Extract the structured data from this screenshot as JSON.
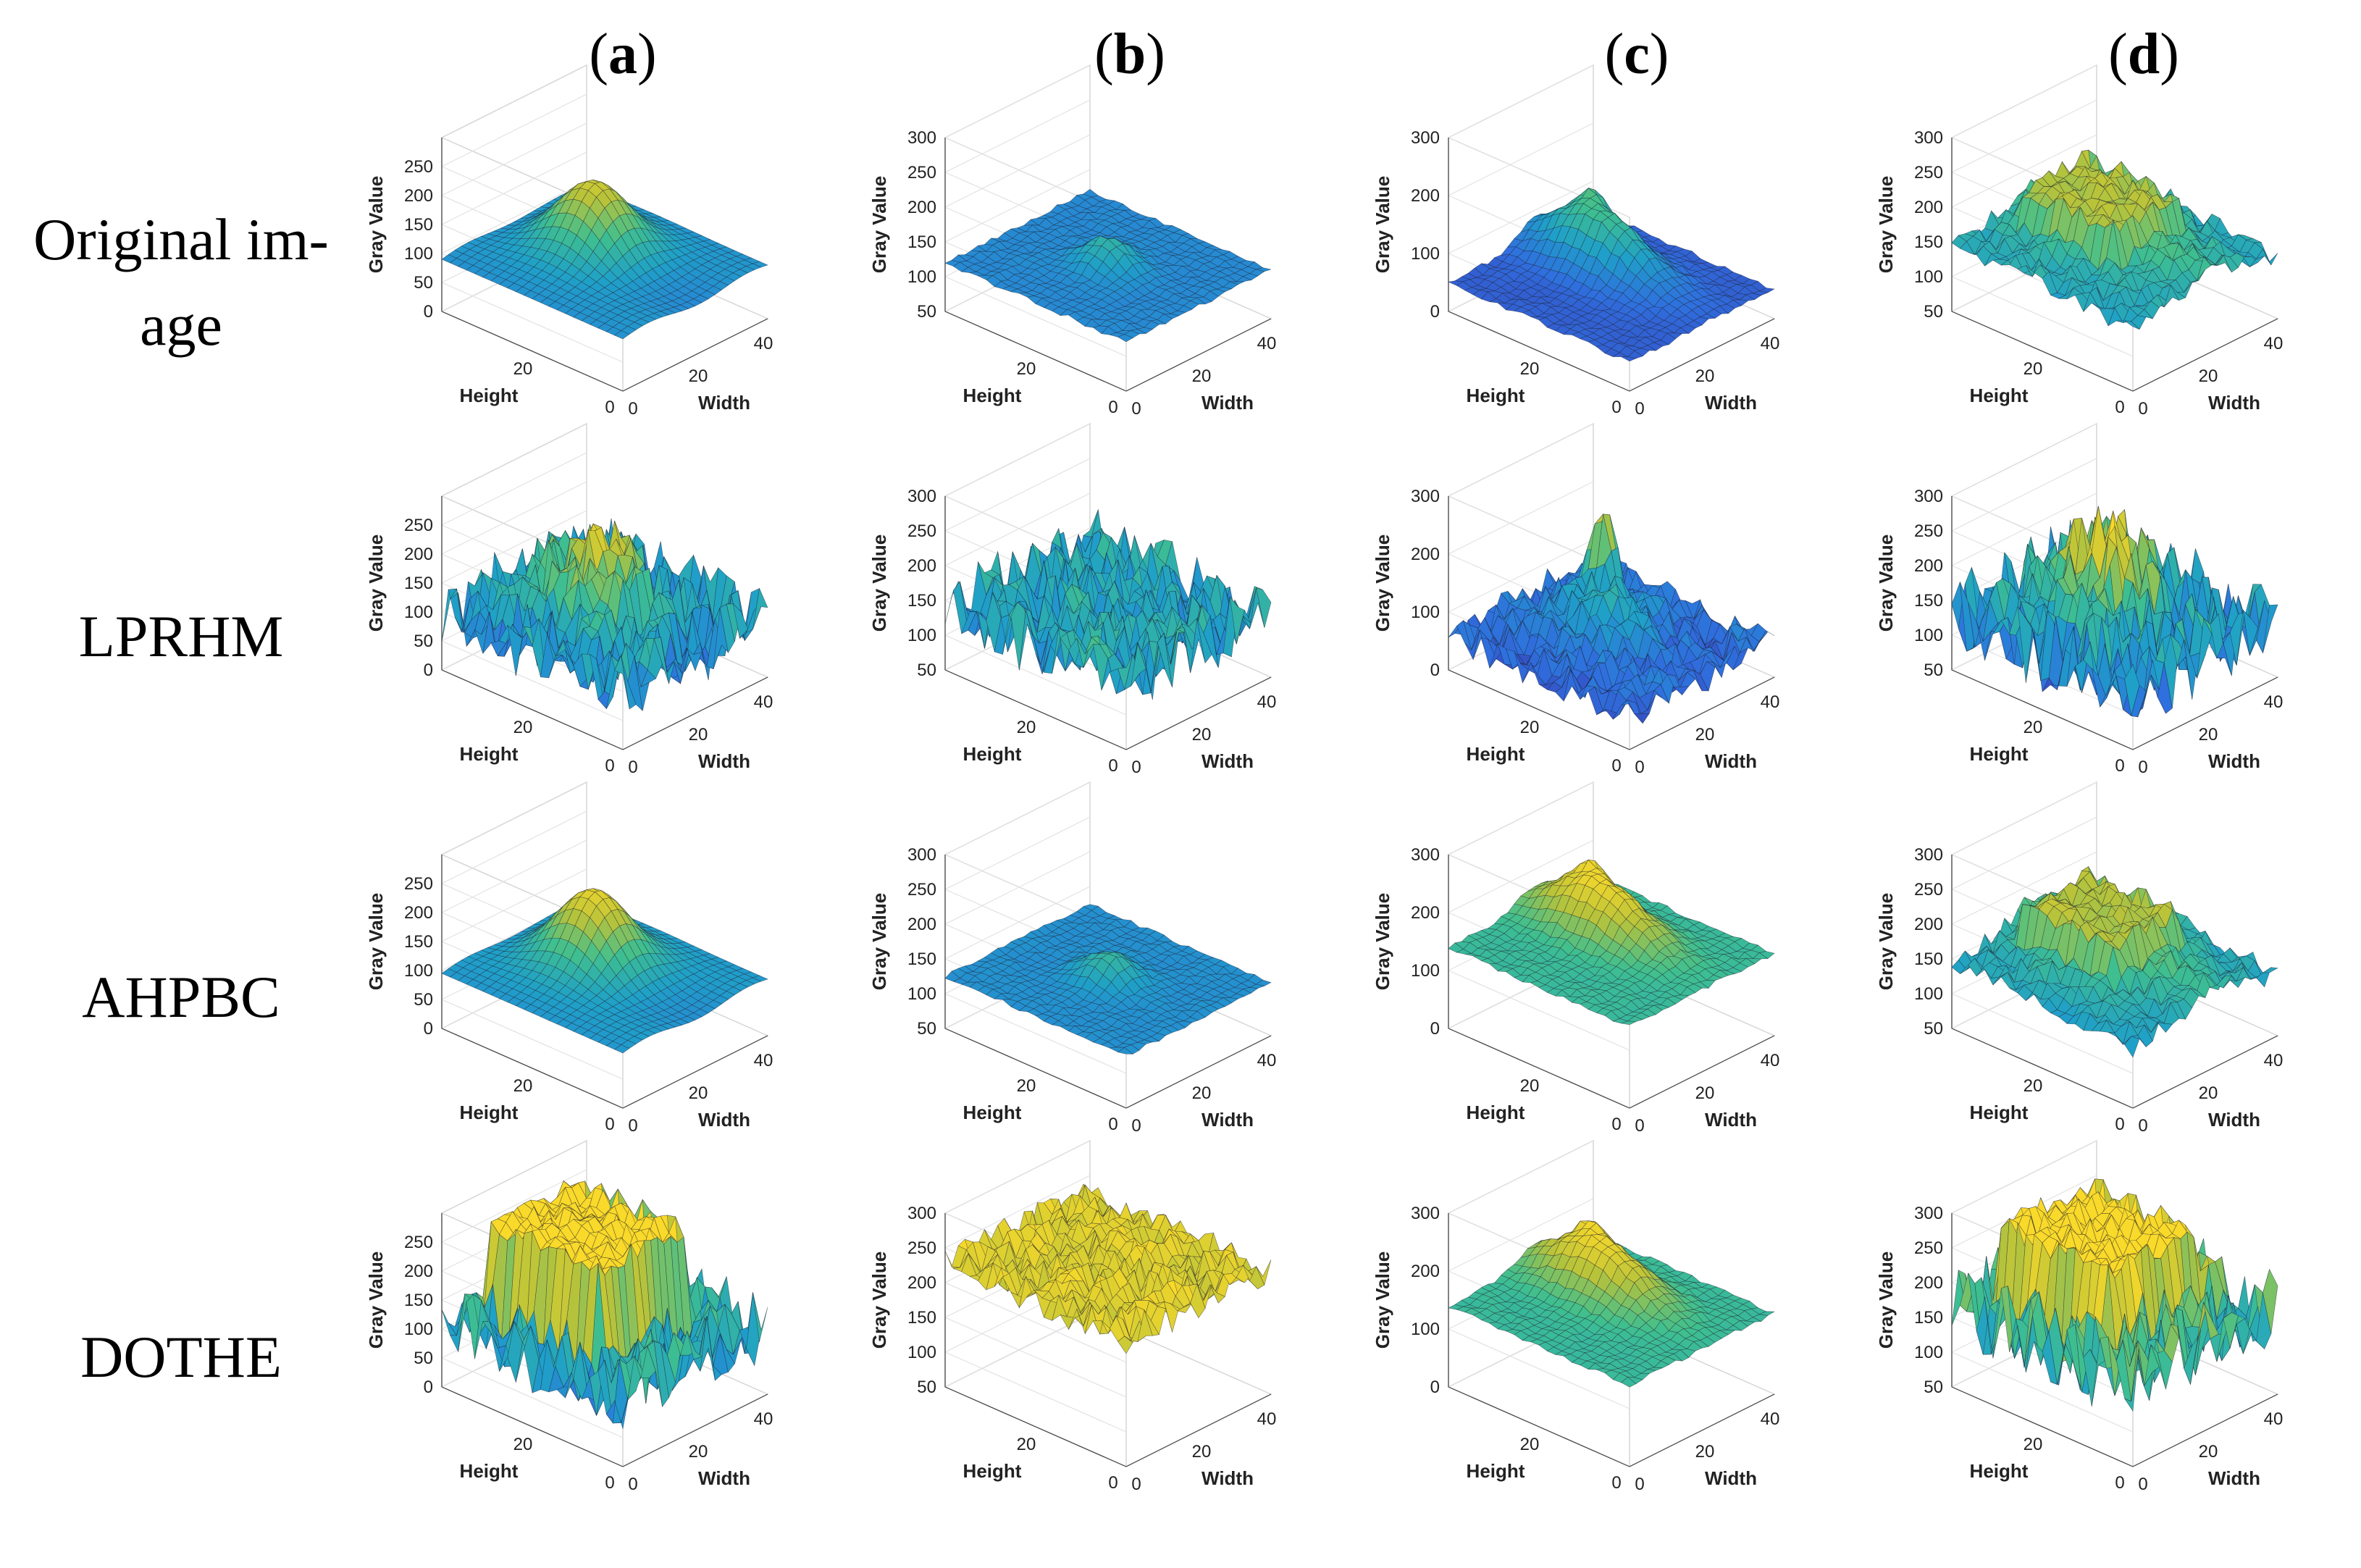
{
  "columns": [
    {
      "open": "(",
      "letter": "a",
      "close": ")"
    },
    {
      "open": "(",
      "letter": "b",
      "close": ")"
    },
    {
      "open": "(",
      "letter": "c",
      "close": ")"
    },
    {
      "open": "(",
      "letter": "d",
      "close": ")"
    }
  ],
  "rows": [
    {
      "line1": "Original im-",
      "line2": "age"
    },
    {
      "line1": "LPRHM",
      "line2": ""
    },
    {
      "line1": "AHPBC",
      "line2": ""
    },
    {
      "line1": "DOTHE",
      "line2": ""
    }
  ],
  "axis_titles": {
    "z": "Gray Value",
    "height": "Height",
    "width": "Width"
  },
  "chart_data": {
    "type": "surface-grid",
    "x_axis": {
      "label": "Width",
      "ticks": [
        "0",
        "20",
        "40"
      ]
    },
    "y_axis": {
      "label": "Height",
      "ticks": [
        "0",
        "20"
      ]
    },
    "z_axis": {
      "label": "Gray Value"
    },
    "colormap": [
      "#3a2da6",
      "#2f6fde",
      "#1fa0c8",
      "#3fbf8f",
      "#b8c33a",
      "#f9d92a"
    ],
    "panels": [
      {
        "row": "Original image",
        "col": "a",
        "zticks": [
          "0",
          "50",
          "100",
          "150",
          "200",
          "250"
        ],
        "zlim": [
          0,
          300
        ],
        "pattern": "smooth-peak",
        "base": 90,
        "peak": 215
      },
      {
        "row": "Original image",
        "col": "b",
        "zticks": [
          "50",
          "100",
          "150",
          "200",
          "250",
          "300"
        ],
        "zlim": [
          50,
          300
        ],
        "pattern": "flat-bump",
        "base": 120,
        "peak": 160
      },
      {
        "row": "Original image",
        "col": "c",
        "zticks": [
          "0",
          "100",
          "200",
          "300"
        ],
        "zlim": [
          0,
          300
        ],
        "pattern": "ridge",
        "base": 50,
        "peak": 185
      },
      {
        "row": "Original image",
        "col": "d",
        "zticks": [
          "50",
          "100",
          "150",
          "200",
          "250",
          "300"
        ],
        "zlim": [
          50,
          300
        ],
        "pattern": "plateau-rough",
        "base": 120,
        "peak": 230
      },
      {
        "row": "LPRHM",
        "col": "a",
        "zticks": [
          "0",
          "50",
          "100",
          "150",
          "200",
          "250"
        ],
        "zlim": [
          0,
          300
        ],
        "pattern": "noisy-peak",
        "base": 100,
        "peak": 230
      },
      {
        "row": "LPRHM",
        "col": "b",
        "zticks": [
          "50",
          "100",
          "150",
          "200",
          "250",
          "300"
        ],
        "zlim": [
          50,
          300
        ],
        "pattern": "noisy-flat",
        "base": 140,
        "peak": 200
      },
      {
        "row": "LPRHM",
        "col": "c",
        "zticks": [
          "0",
          "100",
          "200",
          "300"
        ],
        "zlim": [
          0,
          300
        ],
        "pattern": "noisy-spike",
        "base": 60,
        "peak": 260
      },
      {
        "row": "LPRHM",
        "col": "d",
        "zticks": [
          "50",
          "100",
          "150",
          "200",
          "250",
          "300"
        ],
        "zlim": [
          50,
          300
        ],
        "pattern": "noisy-peak",
        "base": 130,
        "peak": 260
      },
      {
        "row": "AHPBC",
        "col": "a",
        "zticks": [
          "0",
          "50",
          "100",
          "150",
          "200",
          "250"
        ],
        "zlim": [
          0,
          300
        ],
        "pattern": "smooth-peak",
        "base": 95,
        "peak": 230
      },
      {
        "row": "AHPBC",
        "col": "b",
        "zticks": [
          "50",
          "100",
          "150",
          "200",
          "250",
          "300"
        ],
        "zlim": [
          50,
          300
        ],
        "pattern": "flat-bump",
        "base": 125,
        "peak": 165
      },
      {
        "row": "AHPBC",
        "col": "c",
        "zticks": [
          "0",
          "100",
          "200",
          "300"
        ],
        "zlim": [
          0,
          300
        ],
        "pattern": "ridge",
        "base": 140,
        "peak": 260
      },
      {
        "row": "AHPBC",
        "col": "d",
        "zticks": [
          "50",
          "100",
          "150",
          "200",
          "250",
          "300"
        ],
        "zlim": [
          50,
          300
        ],
        "pattern": "plateau-rough",
        "base": 120,
        "peak": 230
      },
      {
        "row": "DOTHE",
        "col": "a",
        "zticks": [
          "0",
          "50",
          "100",
          "150",
          "200",
          "250"
        ],
        "zlim": [
          0,
          300
        ],
        "pattern": "noisy-plateau",
        "base": 90,
        "peak": 265
      },
      {
        "row": "DOTHE",
        "col": "b",
        "zticks": [
          "50",
          "100",
          "150",
          "200",
          "250",
          "300"
        ],
        "zlim": [
          50,
          300
        ],
        "pattern": "high-rough",
        "base": 230,
        "peak": 260
      },
      {
        "row": "DOTHE",
        "col": "c",
        "zticks": [
          "0",
          "100",
          "200",
          "300"
        ],
        "zlim": [
          0,
          300
        ],
        "pattern": "ridge",
        "base": 140,
        "peak": 260
      },
      {
        "row": "DOTHE",
        "col": "d",
        "zticks": [
          "50",
          "100",
          "150",
          "200",
          "250",
          "300"
        ],
        "zlim": [
          50,
          300
        ],
        "pattern": "noisy-plateau",
        "base": 150,
        "peak": 265
      }
    ]
  }
}
